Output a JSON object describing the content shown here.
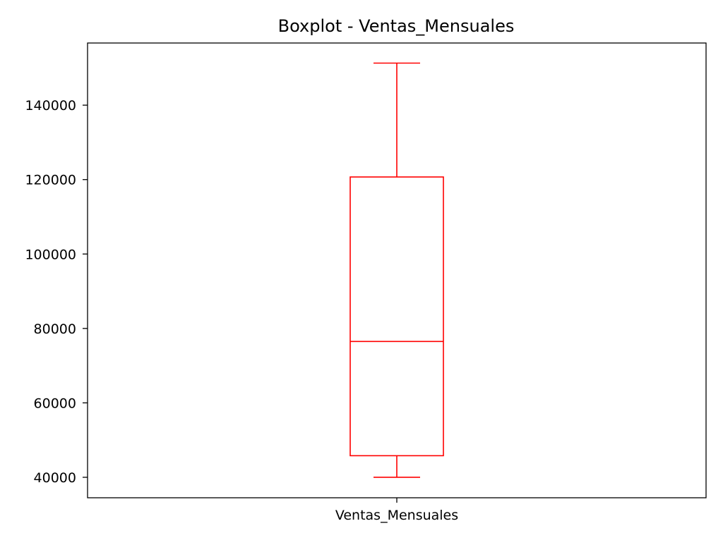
{
  "chart_data": {
    "type": "boxplot",
    "title": "Boxplot - Ventas_Mensuales",
    "xlabel": "",
    "ylabel": "",
    "categories": [
      "Ventas_Mensuales"
    ],
    "series": [
      {
        "whisker_low": 40000,
        "q1": 45800,
        "median": 76500,
        "q3": 120700,
        "whisker_high": 151300
      }
    ],
    "yticks": [
      40000,
      60000,
      80000,
      100000,
      120000,
      140000
    ],
    "ytick_labels": [
      "40000",
      "60000",
      "80000",
      "100000",
      "120000",
      "140000"
    ],
    "ylim": [
      34500,
      156700
    ],
    "grid": false,
    "legend": "none",
    "colors": {
      "box": "#ff0000",
      "axis": "#000000",
      "background": "#ffffff"
    }
  }
}
